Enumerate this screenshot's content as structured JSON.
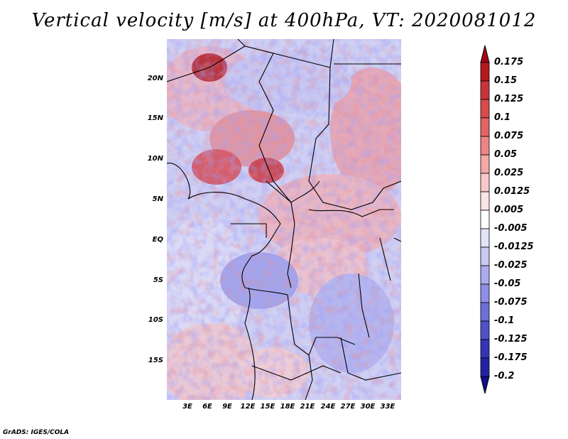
{
  "title": "Vertical velocity [m/s] at 400hPa, VT: 2020081012",
  "credit": "GrADS: IGES/COLA",
  "map": {
    "lat_labels": [
      "20N",
      "15N",
      "10N",
      "5N",
      "EQ",
      "5S",
      "10S",
      "15S"
    ],
    "lon_labels": [
      "3E",
      "6E",
      "9E",
      "12E",
      "15E",
      "18E",
      "21E",
      "24E",
      "27E",
      "30E",
      "33E"
    ]
  },
  "colorbar": {
    "labels": [
      "0.175",
      "0.15",
      "0.125",
      "0.1",
      "0.075",
      "0.05",
      "0.025",
      "0.0125",
      "0.005",
      "-0.005",
      "-0.0125",
      "-0.025",
      "-0.05",
      "-0.075",
      "-0.1",
      "-0.125",
      "-0.175",
      "-0.2"
    ],
    "colors": [
      "#a00a15",
      "#b4191f",
      "#c8333a",
      "#d84a4c",
      "#e46464",
      "#ec8585",
      "#f4a8a8",
      "#f8c8c8",
      "#fce4e4",
      "#ffffff",
      "#e3e4fb",
      "#c8c9f4",
      "#abacee",
      "#8d8ee6",
      "#6e6ed9",
      "#5050c9",
      "#3434b6",
      "#2222a5",
      "#0f0f8a"
    ]
  }
}
